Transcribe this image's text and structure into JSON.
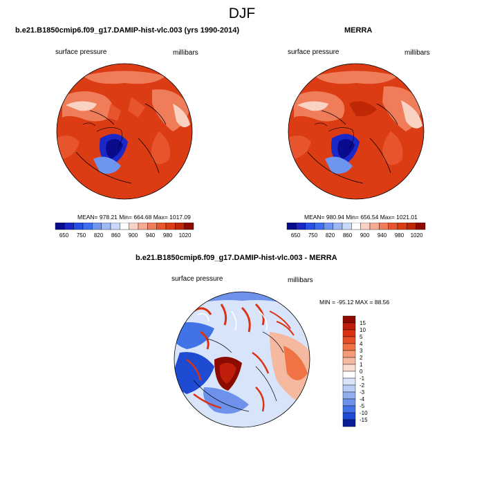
{
  "page": {
    "title": "DJF"
  },
  "panels": [
    {
      "title": "b.e21.B1850cmip6.f09_g17.DAMIP-hist-vlc.003 (yrs 1990-2014)",
      "left_label": "surface pressure",
      "right_label": "millibars",
      "stats": {
        "mean_label": "MEAN=",
        "mean": "978.21",
        "min_label": "Min=",
        "min": "664.68",
        "max_label": "Max=",
        "max": "1017.09"
      }
    },
    {
      "title": "MERRA",
      "left_label": "surface pressure",
      "right_label": "millibars",
      "stats": {
        "mean_label": "MEAN=",
        "mean": "980.94",
        "min_label": "Min=",
        "min": "656.54",
        "max_label": "Max=",
        "max": "1021.01"
      }
    },
    {
      "title": "b.e21.B1850cmip6.f09_g17.DAMIP-hist-vlc.003 - MERRA",
      "left_label": "surface pressure",
      "right_label": "millibars",
      "stats_text": "MIN = -95.12 MAX =  88.56"
    }
  ],
  "chart_data": [
    {
      "type": "heatmap",
      "projection": "north polar stereographic",
      "title": "b.e21.B1850cmip6.f09_g17.DAMIP-hist-vlc.003 (yrs 1990-2014)",
      "variable": "surface pressure",
      "units": "millibars",
      "mean": 978.21,
      "min": 664.68,
      "max": 1017.09,
      "colorbar": {
        "orientation": "horizontal",
        "tick_labels": [
          "650",
          "750",
          "820",
          "860",
          "900",
          "940",
          "980",
          "1020"
        ],
        "colors": [
          "#0a0a8c",
          "#1a28c8",
          "#2850e6",
          "#3c6ef0",
          "#6e96f0",
          "#a0b9f5",
          "#c8d7fa",
          "#ffffff",
          "#fad2c3",
          "#f5aa91",
          "#f07d5a",
          "#e6552d",
          "#dc3c14",
          "#be2805",
          "#8c0a00"
        ]
      }
    },
    {
      "type": "heatmap",
      "projection": "north polar stereographic",
      "title": "MERRA",
      "variable": "surface pressure",
      "units": "millibars",
      "mean": 980.94,
      "min": 656.54,
      "max": 1021.01,
      "colorbar": {
        "orientation": "horizontal",
        "tick_labels": [
          "650",
          "750",
          "820",
          "860",
          "900",
          "940",
          "980",
          "1020"
        ],
        "colors": [
          "#0a0a8c",
          "#1a28c8",
          "#2850e6",
          "#3c6ef0",
          "#6e96f0",
          "#a0b9f5",
          "#c8d7fa",
          "#ffffff",
          "#fad2c3",
          "#f5aa91",
          "#f07d5a",
          "#e6552d",
          "#dc3c14",
          "#be2805",
          "#8c0a00"
        ]
      }
    },
    {
      "type": "heatmap",
      "projection": "north polar stereographic",
      "title": "b.e21.B1850cmip6.f09_g17.DAMIP-hist-vlc.003 - MERRA",
      "variable": "surface pressure",
      "units": "millibars",
      "min": -95.12,
      "max": 88.56,
      "colorbar": {
        "orientation": "vertical",
        "tick_labels": [
          "15",
          "10",
          "5",
          "4",
          "3",
          "2",
          "1",
          "0",
          "-1",
          "-2",
          "-3",
          "-4",
          "-5",
          "-10",
          "-15"
        ],
        "colors": [
          "#8c0a00",
          "#be1e0a",
          "#dc3214",
          "#e65028",
          "#f07346",
          "#f59b78",
          "#f5b9a0",
          "#fadcd2",
          "#ffffff",
          "#d7e4fa",
          "#b9cdf5",
          "#91aff0",
          "#6e91eb",
          "#4173e6",
          "#1e4bd2",
          "#0a1e96"
        ]
      }
    }
  ]
}
